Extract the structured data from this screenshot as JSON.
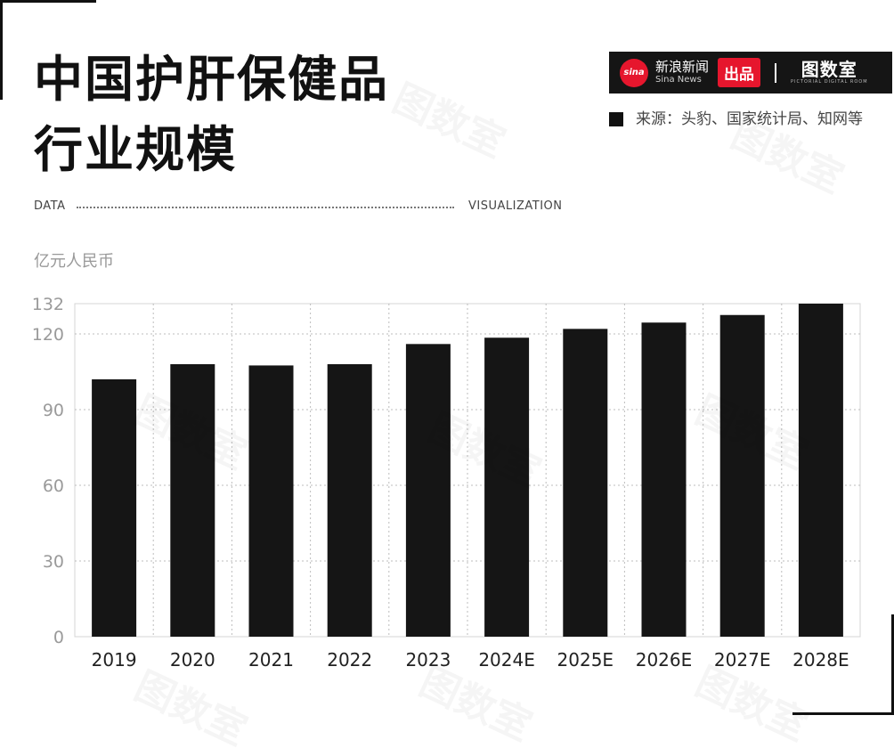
{
  "header": {
    "title_line1": "中国护肝保健品",
    "title_line2": "行业规模"
  },
  "brand": {
    "sina_logo_text": "sina",
    "sina_cn": "新浪新闻",
    "sina_en": "Sina News",
    "chupin": "出品",
    "tushushi_cn": "图数室",
    "tushushi_en": "PICTORIAL DIGITAL ROOM",
    "accent_color": "#e6162d",
    "bar_color": "#151515"
  },
  "source": {
    "text": "来源：头豹、国家统计局、知网等"
  },
  "labels": {
    "data": "DATA",
    "visualization": "VISUALIZATION"
  },
  "chart_data": {
    "type": "bar",
    "ylabel": "亿元人民币",
    "categories": [
      "2019",
      "2020",
      "2021",
      "2022",
      "2023",
      "2024E",
      "2025E",
      "2026E",
      "2027E",
      "2028E"
    ],
    "values": [
      102,
      108,
      107.5,
      108,
      116,
      118.5,
      122,
      124.5,
      127.5,
      132
    ],
    "yticks": [
      0,
      30,
      60,
      90,
      120,
      132
    ],
    "ylim": [
      0,
      132
    ],
    "grid": true,
    "bar_color": "#151515"
  }
}
